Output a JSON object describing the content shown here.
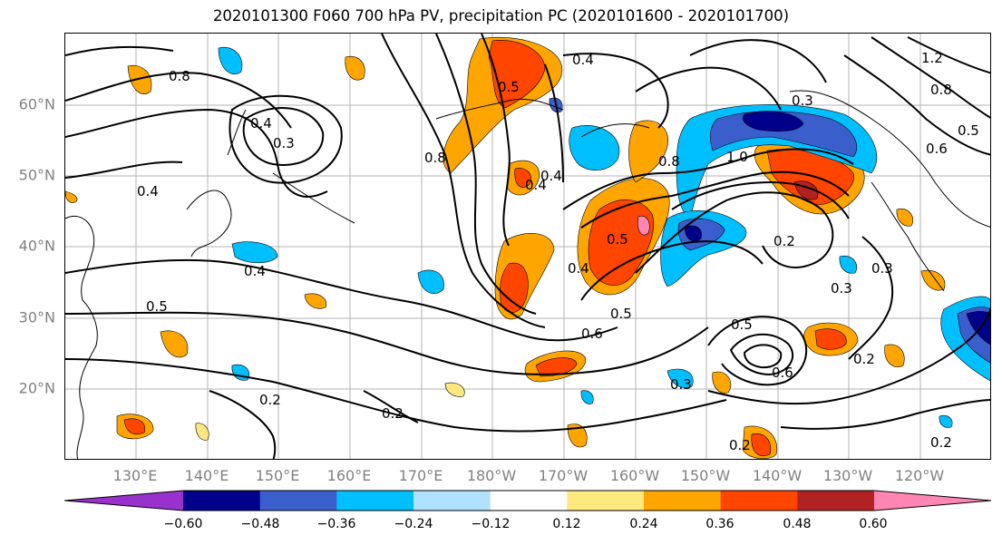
{
  "title": "2020101300 F060 700 hPa PV, precipitation PC (2020101600 - 2020101700)",
  "latitude_labels": [
    "60°N",
    "50°N",
    "40°N",
    "30°N",
    "20°N"
  ],
  "longitude_labels": [
    "130°E",
    "140°E",
    "150°E",
    "160°E",
    "170°E",
    "180°W",
    "170°W",
    "160°W",
    "150°W",
    "140°W",
    "130°W",
    "120°W"
  ],
  "contour_labels": [
    "0.8",
    "0.4",
    "0.3",
    "0.4",
    "0.4",
    "0.5",
    "0.2",
    "0.2",
    "0.8",
    "0.5",
    "0.4",
    "0.6",
    "0.5",
    "0.4",
    "0.8",
    "1.0",
    "0.5",
    "0.3",
    "0.2",
    "0.3",
    "0.3",
    "0.5",
    "0.6",
    "0.4",
    "0.2",
    "0.2",
    "0.2",
    "0.3",
    "1.2",
    "0.8",
    "0.6",
    "0.5",
    "0.4"
  ],
  "colorbar": {
    "ticks": [
      "−0.60",
      "−0.48",
      "−0.36",
      "−0.24",
      "−0.12",
      "0.12",
      "0.24",
      "0.36",
      "0.48",
      "0.60"
    ],
    "colors": [
      "#9932cc",
      "#00008b",
      "#3a5fcd",
      "#00bfff",
      "#b0e2ff",
      "#ffffff",
      "#ffe97f",
      "#ffa500",
      "#ff4500",
      "#b22222",
      "#ff86b4"
    ]
  }
}
